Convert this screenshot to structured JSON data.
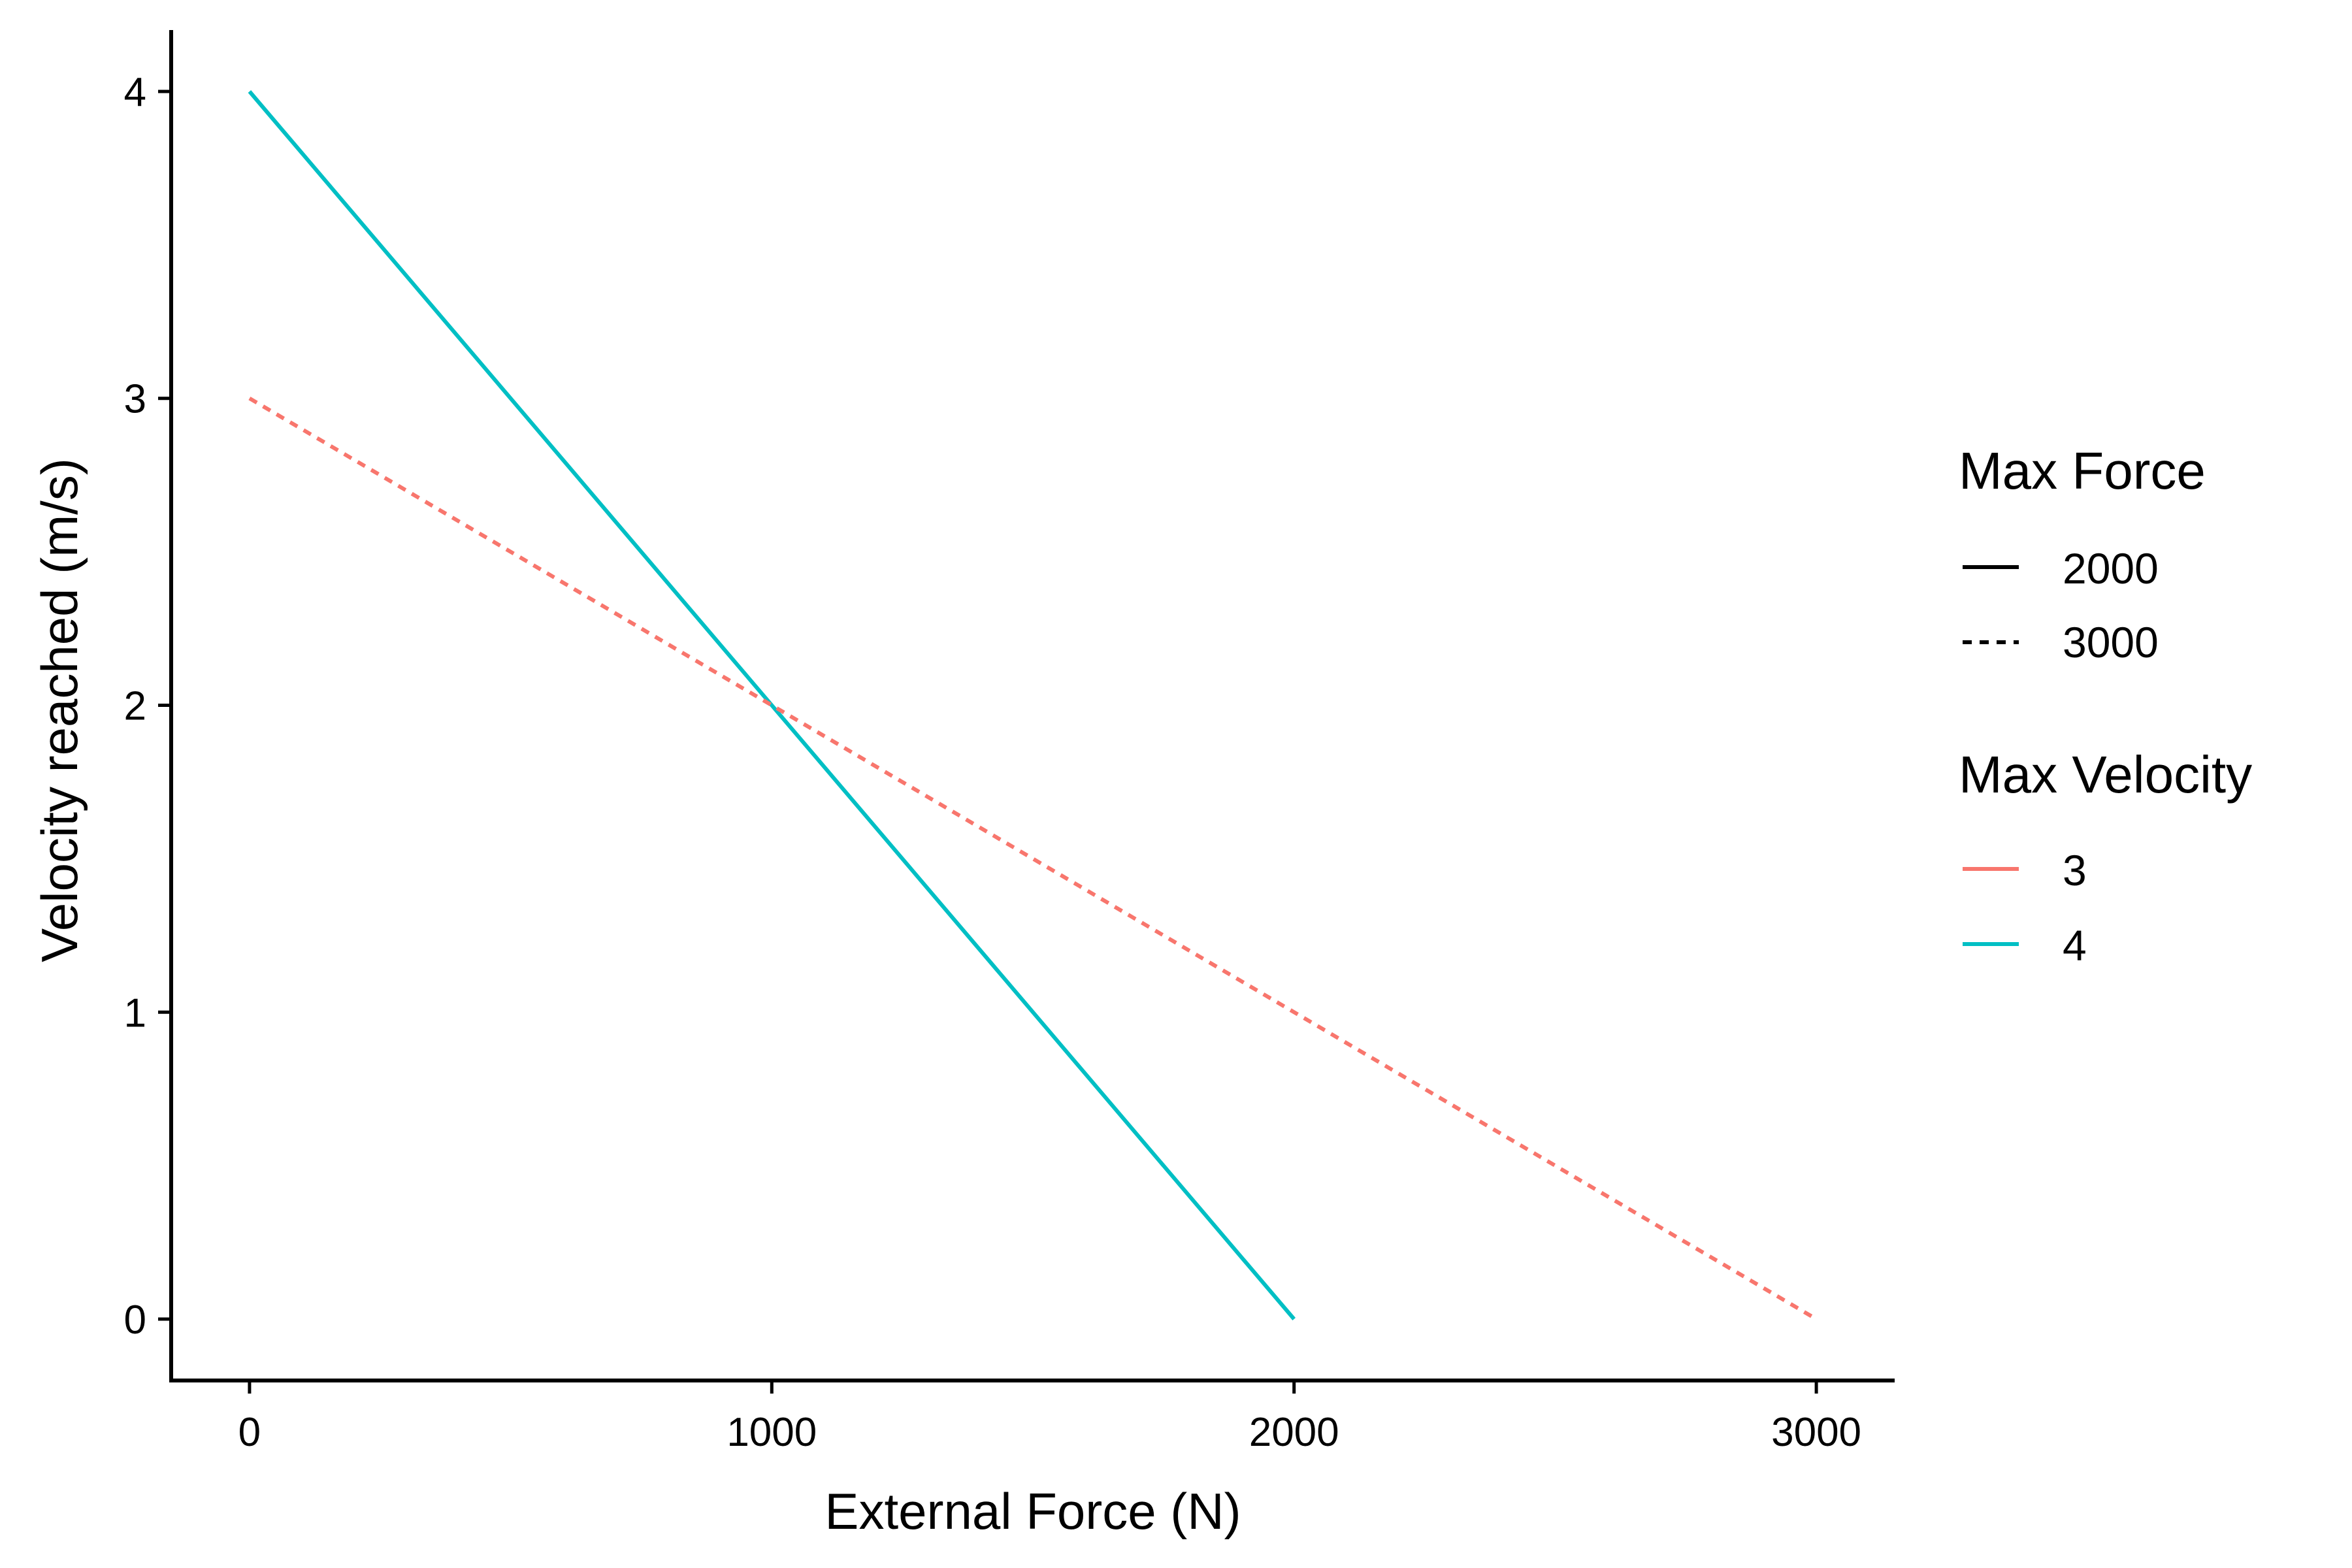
{
  "chart_data": {
    "type": "line",
    "xlabel": "External Force (N)",
    "ylabel": "Velocity reached (m/s)",
    "xlim": [
      -150,
      3150
    ],
    "ylim": [
      -0.2,
      4.2
    ],
    "xticks": [
      0,
      1000,
      2000,
      3000
    ],
    "yticks": [
      0,
      1,
      2,
      3,
      4
    ],
    "grid": false,
    "legend_position": "right",
    "series": [
      {
        "max_force": "2000",
        "max_velocity": "4",
        "color": "#00BFC4",
        "linetype": "solid",
        "x": [
          0,
          2000
        ],
        "y": [
          4,
          0
        ]
      },
      {
        "max_force": "3000",
        "max_velocity": "3",
        "color": "#F8766D",
        "linetype": "dashed",
        "x": [
          0,
          3000
        ],
        "y": [
          3,
          0
        ]
      }
    ],
    "legends": [
      {
        "title": "Max Force",
        "entries": [
          {
            "label": "2000",
            "linetype": "solid",
            "color": "#000000"
          },
          {
            "label": "3000",
            "linetype": "dashed",
            "color": "#000000"
          }
        ]
      },
      {
        "title": "Max Velocity",
        "entries": [
          {
            "label": "3",
            "linetype": "solid",
            "color": "#F8766D"
          },
          {
            "label": "4",
            "linetype": "solid",
            "color": "#00BFC4"
          }
        ]
      }
    ]
  }
}
